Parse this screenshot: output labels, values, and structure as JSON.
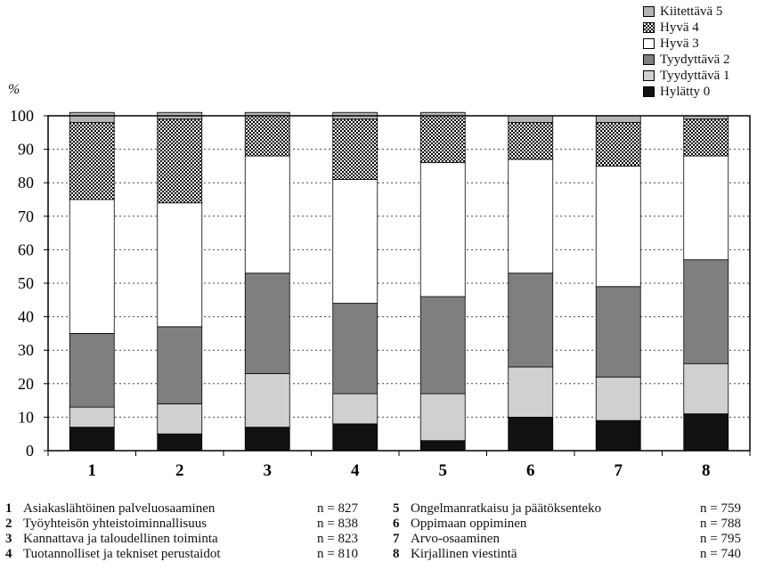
{
  "chart_data": {
    "type": "bar",
    "stacked": true,
    "ylabel": "%",
    "ylim": [
      0,
      100
    ],
    "yticks": [
      0,
      10,
      20,
      30,
      40,
      50,
      60,
      70,
      80,
      90,
      100
    ],
    "grid": "horizontal dotted",
    "legend_position": "top-right",
    "categories": [
      "1",
      "2",
      "3",
      "4",
      "5",
      "6",
      "7",
      "8"
    ],
    "series": [
      {
        "name": "Hylätty 0",
        "color": "#111111",
        "pattern": "solid",
        "values": [
          7,
          5,
          7,
          8,
          3,
          10,
          9,
          11
        ]
      },
      {
        "name": "Tyydyttävä 1",
        "color": "#d0d0d0",
        "pattern": "solid",
        "values": [
          6,
          9,
          16,
          9,
          14,
          15,
          13,
          15
        ]
      },
      {
        "name": "Tyydyttävä 2",
        "color": "#7f7f7f",
        "pattern": "solid",
        "values": [
          22,
          23,
          30,
          27,
          29,
          28,
          27,
          31
        ]
      },
      {
        "name": "Hyvä 3",
        "color": "#ffffff",
        "pattern": "solid",
        "values": [
          40,
          37,
          35,
          37,
          40,
          34,
          36,
          31
        ]
      },
      {
        "name": "Hyvä 4",
        "color": "#000000",
        "pattern": "checker",
        "values": [
          23,
          25,
          12,
          18,
          14,
          11,
          13,
          11
        ]
      },
      {
        "name": "Kiitettävä 5",
        "color": "#b5b5b5",
        "pattern": "solid",
        "values": [
          3,
          2,
          1,
          2,
          1,
          2,
          2,
          1
        ]
      }
    ]
  },
  "legend_order": [
    "Kiitettävä 5",
    "Hyvä 4",
    "Hyvä 3",
    "Tyydyttävä 2",
    "Tyydyttävä 1",
    "Hylätty 0"
  ],
  "footnotes": [
    {
      "num": "1",
      "label": "Asiakaslähtöinen palveluosaaminen",
      "n": "n = 827"
    },
    {
      "num": "2",
      "label": "Työyhteisön yhteistoiminnallisuus",
      "n": "n = 838"
    },
    {
      "num": "3",
      "label": "Kannattava ja taloudellinen toiminta",
      "n": "n = 823"
    },
    {
      "num": "4",
      "label": "Tuotannolliset ja tekniset perustaidot",
      "n": "n = 810"
    },
    {
      "num": "5",
      "label": "Ongelmanratkaisu ja päätöksenteko",
      "n": "n = 759"
    },
    {
      "num": "6",
      "label": "Oppimaan oppiminen",
      "n": "n = 788"
    },
    {
      "num": "7",
      "label": "Arvo-osaaminen",
      "n": "n = 795"
    },
    {
      "num": "8",
      "label": "Kirjallinen viestintä",
      "n": "n = 740"
    }
  ]
}
